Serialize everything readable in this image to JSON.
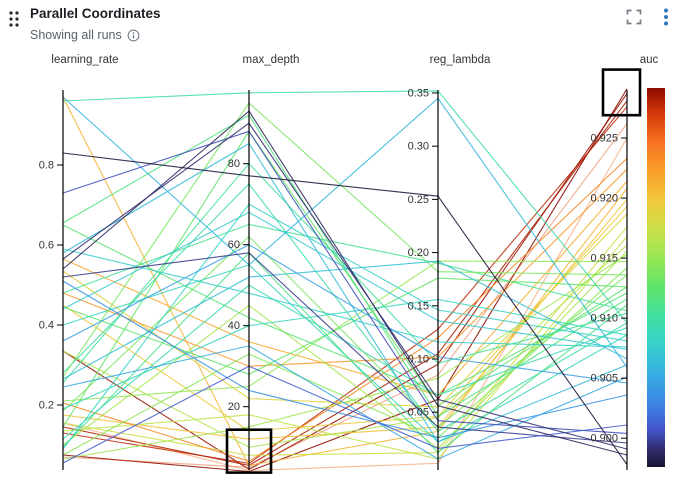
{
  "header": {
    "title": "Parallel Coordinates",
    "subtitle": "Showing all runs"
  },
  "colors": {
    "accent_blue": "#2e78c2",
    "icon_gray": "#757c85",
    "title_text": "#1b1e23",
    "subtitle_text": "#59626e",
    "axis_text": "#333333",
    "axis_line": "#000000",
    "brush_stroke": "#000000",
    "background": "#ffffff"
  },
  "chart_data": {
    "type": "parallel-coordinates",
    "color_by": "auc",
    "legend_position": "right-colorbar",
    "grid": false,
    "axes": [
      {
        "key": "learning_rate",
        "label": "learning_rate",
        "domain": [
          0.045,
          0.9875
        ],
        "ticks": [
          {
            "v": 0.2,
            "label": "0.2"
          },
          {
            "v": 0.4,
            "label": "0.4"
          },
          {
            "v": 0.6,
            "label": "0.6"
          },
          {
            "v": 0.8,
            "label": "0.8"
          }
        ]
      },
      {
        "key": "max_depth",
        "label": "max_depth",
        "domain": [
          5.1,
          98.2
        ],
        "ticks": [
          {
            "v": 20,
            "label": "20"
          },
          {
            "v": 40,
            "label": "40"
          },
          {
            "v": 60,
            "label": "60"
          },
          {
            "v": 80,
            "label": "80"
          }
        ]
      },
      {
        "key": "reg_lambda",
        "label": "reg_lambda",
        "domain": [
          -0.0015,
          0.3528
        ],
        "ticks": [
          {
            "v": 0.05,
            "label": "0.05"
          },
          {
            "v": 0.1,
            "label": "0.10"
          },
          {
            "v": 0.15,
            "label": "0.15"
          },
          {
            "v": 0.2,
            "label": "0.20"
          },
          {
            "v": 0.25,
            "label": "0.25"
          },
          {
            "v": 0.3,
            "label": "0.30"
          },
          {
            "v": 0.35,
            "label": "0.35"
          }
        ]
      },
      {
        "key": "auc",
        "label": "auc",
        "domain": [
          0.8976,
          0.929
        ],
        "ticks": [
          {
            "v": 0.9,
            "label": "0.900"
          },
          {
            "v": 0.905,
            "label": "0.905"
          },
          {
            "v": 0.91,
            "label": "0.910"
          },
          {
            "v": 0.915,
            "label": "0.915"
          },
          {
            "v": 0.92,
            "label": "0.920"
          },
          {
            "v": 0.925,
            "label": "0.925"
          }
        ]
      }
    ],
    "runs": [
      [
        0.335,
        4.5,
        0.095,
        0.9287
      ],
      [
        0.145,
        5.5,
        0.105,
        0.9281
      ],
      [
        0.075,
        4.0,
        0.062,
        0.9291
      ],
      [
        0.13,
        6.0,
        0.128,
        0.9276
      ],
      [
        0.07,
        5.0,
        0.085,
        0.9262,
        1
      ],
      [
        0.155,
        4.2,
        0.002,
        0.925,
        1
      ],
      [
        0.97,
        5.5,
        0.032,
        0.9208
      ],
      [
        0.535,
        22,
        0.055,
        0.9187
      ],
      [
        0.48,
        30,
        0.102,
        0.9224
      ],
      [
        0.175,
        12,
        0.036,
        0.9199
      ],
      [
        0.155,
        8,
        0.012,
        0.9176
      ],
      [
        0.45,
        14,
        0.046,
        0.9193
      ],
      [
        0.565,
        36,
        0.066,
        0.9214
      ],
      [
        0.135,
        18,
        0.006,
        0.9168
      ],
      [
        0.205,
        6.5,
        0.12,
        0.9233
      ],
      [
        0.335,
        10,
        0.045,
        0.9161
      ],
      [
        0.065,
        15,
        0.082,
        0.9153
      ],
      [
        0.21,
        25,
        0.192,
        0.9147
      ],
      [
        0.1,
        45,
        0.016,
        0.9156
      ],
      [
        0.185,
        62,
        0.036,
        0.9136
      ],
      [
        0.075,
        33,
        0.026,
        0.9142
      ],
      [
        0.145,
        88,
        0.056,
        0.9126
      ],
      [
        0.96,
        97.5,
        0.352,
        0.9096
      ],
      [
        0.655,
        92,
        0.046,
        0.9116
      ],
      [
        0.48,
        65,
        0.19,
        0.9106
      ],
      [
        0.445,
        28,
        0.176,
        0.9126
      ],
      [
        0.4,
        55,
        0.022,
        0.9086
      ],
      [
        0.65,
        42,
        0.066,
        0.9121
      ],
      [
        0.28,
        75,
        0.032,
        0.9096
      ],
      [
        0.27,
        95,
        0.182,
        0.9136
      ],
      [
        0.59,
        48,
        0.116,
        0.9076
      ],
      [
        0.095,
        58,
        0.012,
        0.9111
      ],
      [
        0.19,
        40,
        0.156,
        0.9086
      ],
      [
        0.115,
        50,
        0.066,
        0.9092
      ],
      [
        0.255,
        80,
        0.096,
        0.9104
      ],
      [
        0.58,
        85,
        0.022,
        0.9061
      ],
      [
        0.44,
        68,
        0.136,
        0.9074
      ],
      [
        0.265,
        52,
        0.192,
        0.9066
      ],
      [
        0.09,
        70,
        0.146,
        0.9081
      ],
      [
        0.97,
        55,
        0.345,
        0.9059
      ],
      [
        0.36,
        60,
        0.102,
        0.9046
      ],
      [
        0.51,
        24,
        0.026,
        0.9036
      ],
      [
        0.245,
        35,
        0.006,
        0.9051
      ],
      [
        0.73,
        88,
        0.042,
        0.9004
      ],
      [
        0.52,
        58,
        0.036,
        0.8996
      ],
      [
        0.055,
        30,
        0.016,
        0.9011
      ],
      [
        0.54,
        93,
        0.056,
        0.8986
      ],
      [
        0.565,
        90,
        0.062,
        0.8991
      ],
      [
        0.83,
        77,
        0.253,
        0.8978
      ]
    ],
    "colormap_stops": [
      [
        0.0,
        "#1a1430"
      ],
      [
        0.05,
        "#312f72"
      ],
      [
        0.1,
        "#4456cd"
      ],
      [
        0.17,
        "#3b86e4"
      ],
      [
        0.25,
        "#36b0e1"
      ],
      [
        0.33,
        "#38d2c8"
      ],
      [
        0.4,
        "#43df9e"
      ],
      [
        0.47,
        "#5ce46e"
      ],
      [
        0.54,
        "#8fe755"
      ],
      [
        0.62,
        "#c6e24a"
      ],
      [
        0.7,
        "#f0c93c"
      ],
      [
        0.78,
        "#fa9f2c"
      ],
      [
        0.86,
        "#f4701f"
      ],
      [
        0.93,
        "#d63b0b"
      ],
      [
        1.0,
        "#8d0b00"
      ]
    ],
    "brushes": [
      {
        "axis": "max_depth",
        "range": [
          3.7,
          14.3
        ],
        "x_offsets": [
          -22,
          22
        ]
      },
      {
        "axis": "auc",
        "range": [
          0.9269,
          0.9307
        ],
        "x_offsets": [
          -24,
          13
        ]
      }
    ]
  }
}
